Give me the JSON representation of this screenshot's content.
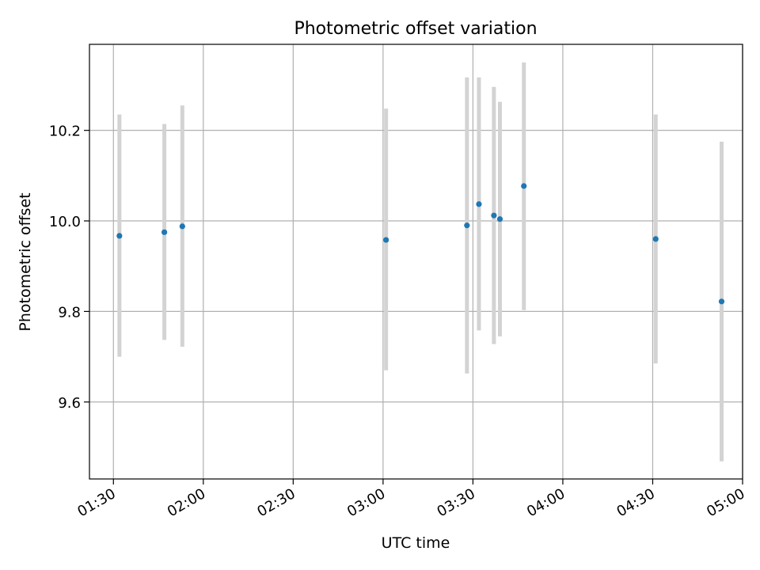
{
  "chart_data": {
    "type": "scatter",
    "title": "Photometric offset variation",
    "xlabel": "UTC time",
    "ylabel": "Photometric offset",
    "xlim": [
      "01:22",
      "05:00"
    ],
    "ylim": [
      9.43,
      10.39
    ],
    "x_ticks": [
      "01:30",
      "02:00",
      "02:30",
      "03:00",
      "03:30",
      "04:00",
      "04:30",
      "05:00"
    ],
    "y_ticks": [
      9.6,
      9.8,
      10.0,
      10.2
    ],
    "y_tick_labels": [
      "9.6",
      "9.8",
      "10.0",
      "10.2"
    ],
    "grid": true,
    "legend": "none",
    "points": [
      {
        "time": "01:32",
        "value": 9.967,
        "low": 9.7,
        "high": 10.235
      },
      {
        "time": "01:47",
        "value": 9.975,
        "low": 9.737,
        "high": 10.214
      },
      {
        "time": "01:53",
        "value": 9.988,
        "low": 9.722,
        "high": 10.255
      },
      {
        "time": "03:01",
        "value": 9.958,
        "low": 9.67,
        "high": 10.248
      },
      {
        "time": "03:28",
        "value": 9.99,
        "low": 9.663,
        "high": 10.317
      },
      {
        "time": "03:32",
        "value": 10.037,
        "low": 9.758,
        "high": 10.317
      },
      {
        "time": "03:37",
        "value": 10.012,
        "low": 9.728,
        "high": 10.296
      },
      {
        "time": "03:39",
        "value": 10.004,
        "low": 9.745,
        "high": 10.263
      },
      {
        "time": "03:47",
        "value": 10.077,
        "low": 9.803,
        "high": 10.35
      },
      {
        "time": "04:31",
        "value": 9.96,
        "low": 9.685,
        "high": 10.235
      },
      {
        "time": "04:53",
        "value": 9.822,
        "low": 9.469,
        "high": 10.175
      }
    ],
    "colors": {
      "point": "#1f77b4",
      "errorbar": "#d3d3d3",
      "grid": "#b0b0b0",
      "axes": "#000000"
    }
  }
}
